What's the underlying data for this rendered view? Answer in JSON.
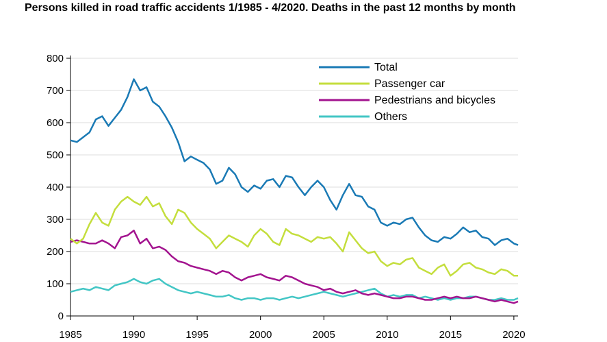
{
  "title": "Persons killed in road traffic accidents 1/1985 - 4/2020. Deaths in the past 12 months by month",
  "colors": {
    "total": "#1a7ab5",
    "passenger_car": "#c4de3d",
    "pedestrians": "#a3148f",
    "others": "#43c6c5",
    "grid": "#dcdcdc",
    "axis": "#000000"
  },
  "chart_data": {
    "type": "line",
    "title": "Persons killed in road traffic accidents 1/1985 - 4/2020. Deaths in the past 12 months by month",
    "xlabel": "",
    "ylabel": "",
    "xlim": [
      1985,
      2020.33
    ],
    "ylim": [
      0,
      800
    ],
    "x_ticks": [
      "1985",
      "1990",
      "1995",
      "2000",
      "2005",
      "2010",
      "2015",
      "2020"
    ],
    "y_ticks": [
      "0",
      "100",
      "200",
      "300",
      "400",
      "500",
      "600",
      "700",
      "800"
    ],
    "grid": "horizontal",
    "legend_position": "top-right",
    "series": [
      {
        "name": "Total",
        "color": "#1a7ab5",
        "x": [
          1985.0,
          1985.5,
          1986.0,
          1986.5,
          1987.0,
          1987.5,
          1988.0,
          1988.5,
          1989.0,
          1989.5,
          1990.0,
          1990.5,
          1991.0,
          1991.5,
          1992.0,
          1992.5,
          1993.0,
          1993.5,
          1994.0,
          1994.5,
          1995.0,
          1995.5,
          1996.0,
          1996.5,
          1997.0,
          1997.5,
          1998.0,
          1998.5,
          1999.0,
          1999.5,
          2000.0,
          2000.5,
          2001.0,
          2001.5,
          2002.0,
          2002.5,
          2003.0,
          2003.5,
          2004.0,
          2004.5,
          2005.0,
          2005.5,
          2006.0,
          2006.5,
          2007.0,
          2007.5,
          2008.0,
          2008.5,
          2009.0,
          2009.5,
          2010.0,
          2010.5,
          2011.0,
          2011.5,
          2012.0,
          2012.5,
          2013.0,
          2013.5,
          2014.0,
          2014.5,
          2015.0,
          2015.5,
          2016.0,
          2016.5,
          2017.0,
          2017.5,
          2018.0,
          2018.5,
          2019.0,
          2019.5,
          2020.0,
          2020.33
        ],
        "values": [
          545,
          540,
          555,
          570,
          610,
          620,
          590,
          615,
          640,
          680,
          735,
          700,
          710,
          665,
          650,
          620,
          585,
          540,
          480,
          495,
          485,
          475,
          455,
          410,
          420,
          460,
          440,
          400,
          385,
          405,
          395,
          420,
          425,
          400,
          435,
          430,
          400,
          375,
          400,
          420,
          400,
          360,
          330,
          375,
          410,
          375,
          370,
          340,
          330,
          290,
          280,
          290,
          285,
          300,
          305,
          275,
          250,
          235,
          230,
          245,
          240,
          255,
          275,
          260,
          265,
          245,
          240,
          220,
          235,
          240,
          225,
          220
        ]
      },
      {
        "name": "Passenger car",
        "color": "#c4de3d",
        "x": [
          1985.0,
          1985.5,
          1986.0,
          1986.5,
          1987.0,
          1987.5,
          1988.0,
          1988.5,
          1989.0,
          1989.5,
          1990.0,
          1990.5,
          1991.0,
          1991.5,
          1992.0,
          1992.5,
          1993.0,
          1993.5,
          1994.0,
          1994.5,
          1995.0,
          1995.5,
          1996.0,
          1996.5,
          1997.0,
          1997.5,
          1998.0,
          1998.5,
          1999.0,
          1999.5,
          2000.0,
          2000.5,
          2001.0,
          2001.5,
          2002.0,
          2002.5,
          2003.0,
          2003.5,
          2004.0,
          2004.5,
          2005.0,
          2005.5,
          2006.0,
          2006.5,
          2007.0,
          2007.5,
          2008.0,
          2008.5,
          2009.0,
          2009.5,
          2010.0,
          2010.5,
          2011.0,
          2011.5,
          2012.0,
          2012.5,
          2013.0,
          2013.5,
          2014.0,
          2014.5,
          2015.0,
          2015.5,
          2016.0,
          2016.5,
          2017.0,
          2017.5,
          2018.0,
          2018.5,
          2019.0,
          2019.5,
          2020.0,
          2020.33
        ],
        "values": [
          240,
          225,
          240,
          285,
          320,
          290,
          280,
          330,
          355,
          370,
          355,
          345,
          370,
          340,
          350,
          310,
          285,
          330,
          320,
          290,
          270,
          255,
          240,
          210,
          230,
          250,
          240,
          230,
          215,
          250,
          270,
          255,
          230,
          220,
          270,
          255,
          250,
          240,
          230,
          245,
          240,
          245,
          225,
          200,
          260,
          235,
          210,
          195,
          200,
          170,
          155,
          165,
          160,
          175,
          180,
          150,
          140,
          130,
          150,
          160,
          125,
          140,
          160,
          165,
          150,
          145,
          135,
          130,
          145,
          140,
          125,
          125
        ]
      },
      {
        "name": "Pedestrians and bicycles",
        "color": "#a3148f",
        "x": [
          1985.0,
          1985.5,
          1986.0,
          1986.5,
          1987.0,
          1987.5,
          1988.0,
          1988.5,
          1989.0,
          1989.5,
          1990.0,
          1990.5,
          1991.0,
          1991.5,
          1992.0,
          1992.5,
          1993.0,
          1993.5,
          1994.0,
          1994.5,
          1995.0,
          1995.5,
          1996.0,
          1996.5,
          1997.0,
          1997.5,
          1998.0,
          1998.5,
          1999.0,
          1999.5,
          2000.0,
          2000.5,
          2001.0,
          2001.5,
          2002.0,
          2002.5,
          2003.0,
          2003.5,
          2004.0,
          2004.5,
          2005.0,
          2005.5,
          2006.0,
          2006.5,
          2007.0,
          2007.5,
          2008.0,
          2008.5,
          2009.0,
          2009.5,
          2010.0,
          2010.5,
          2011.0,
          2011.5,
          2012.0,
          2012.5,
          2013.0,
          2013.5,
          2014.0,
          2014.5,
          2015.0,
          2015.5,
          2016.0,
          2016.5,
          2017.0,
          2017.5,
          2018.0,
          2018.5,
          2019.0,
          2019.5,
          2020.0,
          2020.33
        ],
        "values": [
          230,
          235,
          230,
          225,
          225,
          235,
          225,
          210,
          245,
          250,
          265,
          225,
          240,
          210,
          215,
          205,
          185,
          170,
          165,
          155,
          150,
          145,
          140,
          130,
          140,
          135,
          120,
          110,
          120,
          125,
          130,
          120,
          115,
          110,
          125,
          120,
          110,
          100,
          95,
          90,
          80,
          85,
          75,
          70,
          75,
          80,
          70,
          65,
          70,
          65,
          60,
          55,
          55,
          60,
          60,
          55,
          50,
          50,
          55,
          60,
          55,
          60,
          55,
          55,
          60,
          55,
          50,
          45,
          50,
          45,
          40,
          45
        ]
      },
      {
        "name": "Others",
        "color": "#43c6c5",
        "x": [
          1985.0,
          1985.5,
          1986.0,
          1986.5,
          1987.0,
          1987.5,
          1988.0,
          1988.5,
          1989.0,
          1989.5,
          1990.0,
          1990.5,
          1991.0,
          1991.5,
          1992.0,
          1992.5,
          1993.0,
          1993.5,
          1994.0,
          1994.5,
          1995.0,
          1995.5,
          1996.0,
          1996.5,
          1997.0,
          1997.5,
          1998.0,
          1998.5,
          1999.0,
          1999.5,
          2000.0,
          2000.5,
          2001.0,
          2001.5,
          2002.0,
          2002.5,
          2003.0,
          2003.5,
          2004.0,
          2004.5,
          2005.0,
          2005.5,
          2006.0,
          2006.5,
          2007.0,
          2007.5,
          2008.0,
          2008.5,
          2009.0,
          2009.5,
          2010.0,
          2010.5,
          2011.0,
          2011.5,
          2012.0,
          2012.5,
          2013.0,
          2013.5,
          2014.0,
          2014.5,
          2015.0,
          2015.5,
          2016.0,
          2016.5,
          2017.0,
          2017.5,
          2018.0,
          2018.5,
          2019.0,
          2019.5,
          2020.0,
          2020.33
        ],
        "values": [
          75,
          80,
          85,
          80,
          90,
          85,
          80,
          95,
          100,
          105,
          115,
          105,
          100,
          110,
          115,
          100,
          90,
          80,
          75,
          70,
          75,
          70,
          65,
          60,
          60,
          65,
          55,
          50,
          55,
          55,
          50,
          55,
          55,
          50,
          55,
          60,
          55,
          60,
          65,
          70,
          75,
          70,
          65,
          60,
          65,
          70,
          75,
          80,
          85,
          70,
          60,
          65,
          60,
          65,
          65,
          55,
          60,
          55,
          50,
          55,
          50,
          55,
          55,
          60,
          60,
          55,
          50,
          50,
          55,
          50,
          50,
          55
        ]
      }
    ]
  }
}
